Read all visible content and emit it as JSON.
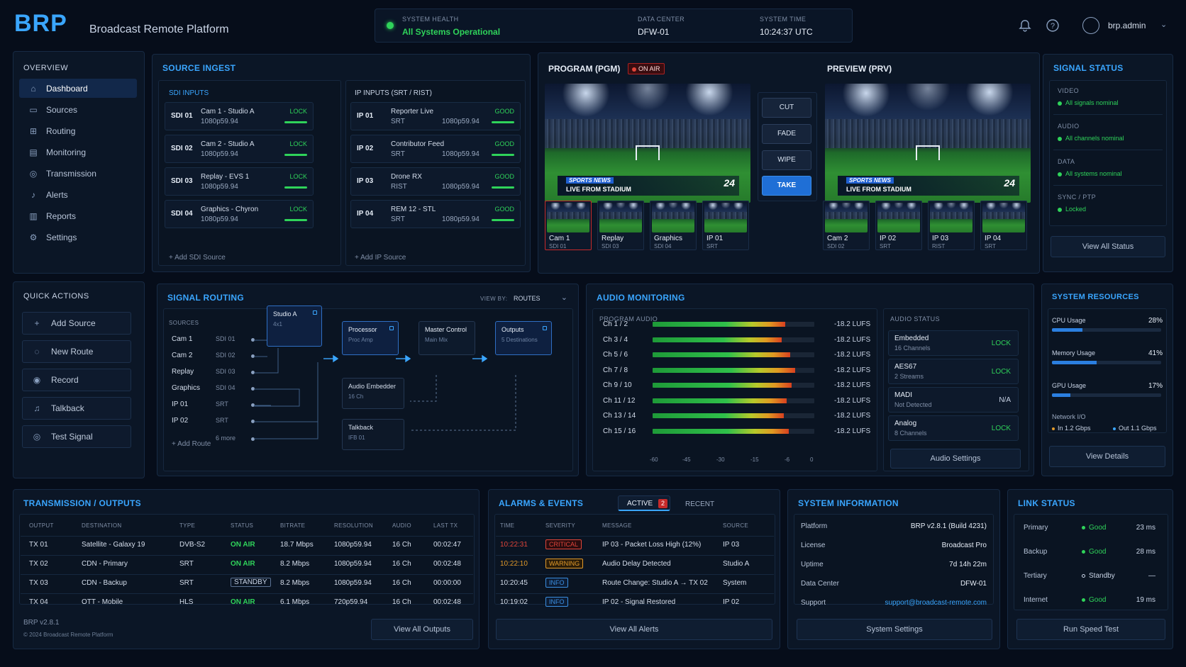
{
  "header": {
    "logo": "BRP",
    "app_title": "Broadcast Remote Platform",
    "health_label": "SYSTEM HEALTH",
    "health_value": "All Systems Operational",
    "dc_label": "DATA CENTER",
    "dc_value": "DFW-01",
    "time_label": "SYSTEM TIME",
    "time_value": "10:24:37 UTC",
    "user": "brp.admin"
  },
  "sidebar": {
    "title": "OVERVIEW",
    "items": [
      {
        "label": "Dashboard",
        "icon": "home-icon"
      },
      {
        "label": "Sources",
        "icon": "monitor-icon"
      },
      {
        "label": "Routing",
        "icon": "routing-icon"
      },
      {
        "label": "Monitoring",
        "icon": "chart-icon"
      },
      {
        "label": "Transmission",
        "icon": "transmission-icon"
      },
      {
        "label": "Alerts",
        "icon": "bell-icon"
      },
      {
        "label": "Reports",
        "icon": "report-icon"
      },
      {
        "label": "Settings",
        "icon": "gear-icon"
      }
    ]
  },
  "quick_actions": {
    "title": "QUICK ACTIONS",
    "items": [
      {
        "label": "Add Source",
        "icon": "plus-icon"
      },
      {
        "label": "New Route",
        "icon": "route-icon"
      },
      {
        "label": "Record",
        "icon": "record-icon"
      },
      {
        "label": "Talkback",
        "icon": "headset-icon"
      },
      {
        "label": "Test Signal",
        "icon": "signal-icon"
      }
    ]
  },
  "ingest": {
    "title": "SOURCE INGEST",
    "sdi_title": "SDI INPUTS",
    "ip_title": "IP INPUTS (SRT / RIST)",
    "sdi": [
      {
        "id": "SDI 01",
        "name": "Cam 1 - Studio A",
        "format": "1080p59.94",
        "status": "LOCK"
      },
      {
        "id": "SDI 02",
        "name": "Cam 2 - Studio A",
        "format": "1080p59.94",
        "status": "LOCK"
      },
      {
        "id": "SDI 03",
        "name": "Replay - EVS 1",
        "format": "1080p59.94",
        "status": "LOCK"
      },
      {
        "id": "SDI 04",
        "name": "Graphics - Chyron",
        "format": "1080p59.94",
        "status": "LOCK"
      }
    ],
    "ip": [
      {
        "id": "IP 01",
        "name": "Reporter Live",
        "proto": "SRT",
        "format": "1080p59.94",
        "status": "GOOD"
      },
      {
        "id": "IP 02",
        "name": "Contributor Feed",
        "proto": "SRT",
        "format": "1080p59.94",
        "status": "GOOD"
      },
      {
        "id": "IP 03",
        "name": "Drone RX",
        "proto": "RIST",
        "format": "1080p59.94",
        "status": "GOOD"
      },
      {
        "id": "IP 04",
        "name": "REM 12 - STL",
        "proto": "SRT",
        "format": "1080p59.94",
        "status": "GOOD"
      }
    ],
    "add_sdi": "+ Add SDI Source",
    "add_ip": "+ Add IP Source"
  },
  "program": {
    "pgm_title": "PROGRAM (PGM)",
    "on_air": "ON AIR",
    "prv_title": "PREVIEW (PRV)",
    "lower_brand": "SPORTS NEWS",
    "lower_text": "LIVE FROM STADIUM",
    "bug": "24",
    "transitions": [
      "CUT",
      "FADE",
      "WIPE",
      "TAKE"
    ],
    "pgm_thumbs": [
      {
        "name": "Cam 1",
        "src": "SDI 01"
      },
      {
        "name": "Replay",
        "src": "SDI 03"
      },
      {
        "name": "Graphics",
        "src": "SDI 04"
      },
      {
        "name": "IP 01",
        "src": "SRT"
      }
    ],
    "prv_thumbs": [
      {
        "name": "Cam 2",
        "src": "SDI 02"
      },
      {
        "name": "IP 02",
        "src": "SRT"
      },
      {
        "name": "IP 03",
        "src": "RIST"
      },
      {
        "name": "IP 04",
        "src": "SRT"
      }
    ]
  },
  "signal_status": {
    "title": "SIGNAL STATUS",
    "items": [
      {
        "label": "VIDEO",
        "value": "All signals nominal"
      },
      {
        "label": "AUDIO",
        "value": "All channels nominal"
      },
      {
        "label": "DATA",
        "value": "All systems nominal"
      },
      {
        "label": "SYNC / PTP",
        "value": "Locked"
      }
    ],
    "button": "View All Status"
  },
  "routing": {
    "title": "SIGNAL ROUTING",
    "view_by_label": "VIEW BY:",
    "view_by_value": "ROUTES",
    "sources_label": "SOURCES",
    "sources": [
      {
        "name": "Cam 1",
        "port": "SDI 01"
      },
      {
        "name": "Cam 2",
        "port": "SDI 02"
      },
      {
        "name": "Replay",
        "port": "SDI 03"
      },
      {
        "name": "Graphics",
        "port": "SDI 04"
      },
      {
        "name": "IP 01",
        "port": "SRT"
      },
      {
        "name": "IP 02",
        "port": "SRT"
      }
    ],
    "more": "6 more",
    "studio": {
      "name": "Studio A",
      "sub": "4x1"
    },
    "processor": {
      "name": "Processor",
      "sub": "Proc Amp"
    },
    "master": {
      "name": "Master Control",
      "sub": "Main Mix"
    },
    "outputs": {
      "name": "Outputs",
      "sub": "5 Destinations"
    },
    "embedder": {
      "name": "Audio Embedder",
      "sub": "16 Ch"
    },
    "talkback": {
      "name": "Talkback",
      "sub": "IFB 01"
    },
    "add_route": "+ Add Route"
  },
  "audio": {
    "title": "AUDIO MONITORING",
    "program_label": "PROGRAM AUDIO",
    "channels": [
      {
        "name": "Ch 1 / 2",
        "value": "-18.2 LUFS",
        "level": 0.82
      },
      {
        "name": "Ch 3 / 4",
        "value": "-18.2 LUFS",
        "level": 0.8
      },
      {
        "name": "Ch 5 / 6",
        "value": "-18.2 LUFS",
        "level": 0.85
      },
      {
        "name": "Ch 7 / 8",
        "value": "-18.2 LUFS",
        "level": 0.88
      },
      {
        "name": "Ch 9 / 10",
        "value": "-18.2 LUFS",
        "level": 0.86
      },
      {
        "name": "Ch 11 / 12",
        "value": "-18.2 LUFS",
        "level": 0.83
      },
      {
        "name": "Ch 13 / 14",
        "value": "-18.2 LUFS",
        "level": 0.81
      },
      {
        "name": "Ch 15 / 16",
        "value": "-18.2 LUFS",
        "level": 0.84
      }
    ],
    "scale": [
      "-60",
      "-45",
      "-30",
      "-15",
      "-6",
      "0"
    ],
    "status_title": "AUDIO STATUS",
    "status": [
      {
        "name": "Embedded",
        "sub": "16 Channels",
        "value": "LOCK"
      },
      {
        "name": "AES67",
        "sub": "2 Streams",
        "value": "LOCK"
      },
      {
        "name": "MADI",
        "sub": "Not Detected",
        "value": "N/A"
      },
      {
        "name": "Analog",
        "sub": "8 Channels",
        "value": "LOCK"
      }
    ],
    "button": "Audio Settings"
  },
  "resources": {
    "title": "SYSTEM RESOURCES",
    "items": [
      {
        "label": "CPU Usage",
        "value": "28%",
        "fraction": 0.28
      },
      {
        "label": "Memory Usage",
        "value": "41%",
        "fraction": 0.41
      },
      {
        "label": "GPU Usage",
        "value": "17%",
        "fraction": 0.17
      }
    ],
    "net_label": "Network I/O",
    "net_in": "In 1.2 Gbps",
    "net_out": "Out 1.1 Gbps",
    "button": "View Details"
  },
  "transmission": {
    "title": "TRANSMISSION / OUTPUTS",
    "columns": [
      "OUTPUT",
      "DESTINATION",
      "TYPE",
      "STATUS",
      "BITRATE",
      "RESOLUTION",
      "AUDIO",
      "LAST TX"
    ],
    "rows": [
      [
        "TX 01",
        "Satellite - Galaxy 19",
        "DVB-S2",
        "ON AIR",
        "18.7 Mbps",
        "1080p59.94",
        "16 Ch",
        "00:02:47"
      ],
      [
        "TX 02",
        "CDN - Primary",
        "SRT",
        "ON AIR",
        "8.2 Mbps",
        "1080p59.94",
        "16 Ch",
        "00:02:48"
      ],
      [
        "TX 03",
        "CDN - Backup",
        "SRT",
        "STANDBY",
        "8.2 Mbps",
        "1080p59.94",
        "16 Ch",
        "00:00:00"
      ],
      [
        "TX 04",
        "OTT - Mobile",
        "HLS",
        "ON AIR",
        "6.1 Mbps",
        "720p59.94",
        "16 Ch",
        "00:02:48"
      ]
    ],
    "version": "BRP v2.8.1",
    "copyright": "© 2024 Broadcast Remote Platform",
    "button": "View All Outputs"
  },
  "alarms": {
    "title": "ALARMS & EVENTS",
    "tab_active": "ACTIVE",
    "tab_active_count": "2",
    "tab_recent": "RECENT",
    "columns": [
      "TIME",
      "SEVERITY",
      "MESSAGE",
      "SOURCE"
    ],
    "rows": [
      {
        "time": "10:22:31",
        "severity": "CRITICAL",
        "message": "IP 03 - Packet Loss High (12%)",
        "source": "IP 03",
        "color": "#e0453a"
      },
      {
        "time": "10:22:10",
        "severity": "WARNING",
        "message": "Audio Delay Detected",
        "source": "Studio A",
        "color": "#e29a2a"
      },
      {
        "time": "10:20:45",
        "severity": "INFO",
        "message": "Route Change: Studio A → TX 02",
        "source": "System",
        "color": "#3a8ee0"
      },
      {
        "time": "10:19:02",
        "severity": "INFO",
        "message": "IP 02 - Signal Restored",
        "source": "IP 02",
        "color": "#3a8ee0"
      }
    ],
    "button": "View All Alerts"
  },
  "sysinfo": {
    "title": "SYSTEM INFORMATION",
    "rows": [
      {
        "label": "Platform",
        "value": "BRP v2.8.1 (Build 4231)"
      },
      {
        "label": "License",
        "value": "Broadcast Pro"
      },
      {
        "label": "Uptime",
        "value": "7d 14h 22m"
      },
      {
        "label": "Data Center",
        "value": "DFW-01"
      },
      {
        "label": "Support",
        "value": "support@broadcast-remote.com"
      }
    ],
    "button": "System Settings"
  },
  "link": {
    "title": "LINK STATUS",
    "rows": [
      {
        "name": "Primary",
        "status": "Good",
        "latency": "23 ms"
      },
      {
        "name": "Backup",
        "status": "Good",
        "latency": "28 ms"
      },
      {
        "name": "Tertiary",
        "status": "Standby",
        "latency": "—"
      },
      {
        "name": "Internet",
        "status": "Good",
        "latency": "19 ms"
      }
    ],
    "button": "Run Speed Test"
  },
  "colors": {
    "accent": "#3aa6ff",
    "good": "#2fd35a",
    "critical": "#e0453a",
    "warning": "#e29a2a",
    "take": "#1f6fd6"
  }
}
